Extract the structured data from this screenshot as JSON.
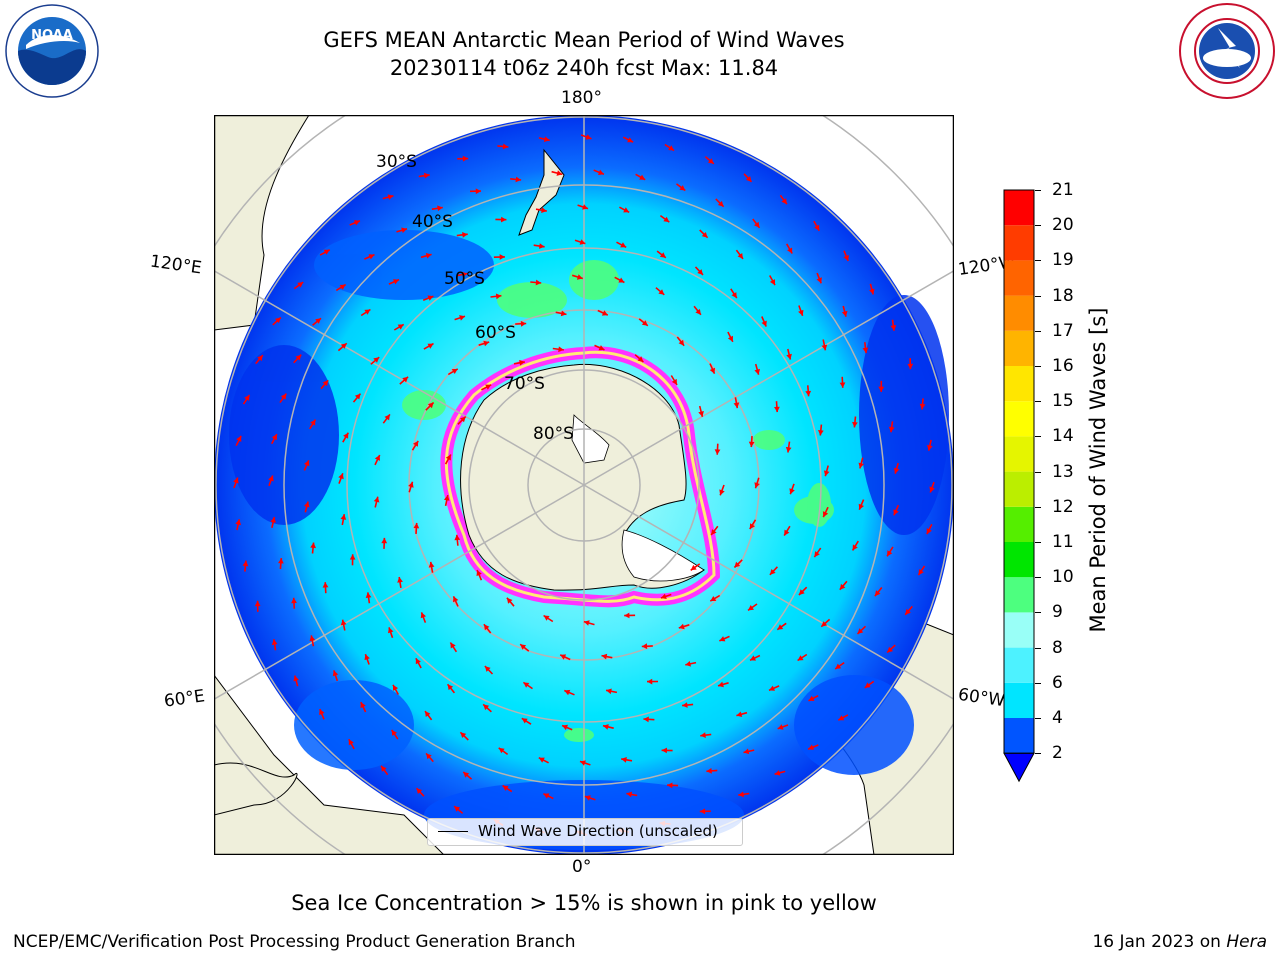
{
  "header": {
    "title_line1": "GEFS MEAN Antarctic Mean Period of Wind Waves",
    "title_line2": "20230114 t06z 240h fcst   Max: 11.84"
  },
  "map": {
    "projection": "south-polar-stereographic",
    "longitude_labels": {
      "top": "180°",
      "bottom": "0°",
      "upper_left": "120°E",
      "upper_right": "120°W",
      "lower_left": "60°E",
      "lower_right": "60°W"
    },
    "latitude_labels": [
      "30°S",
      "40°S",
      "50°S",
      "60°S",
      "70°S",
      "80°S"
    ],
    "legend_label": "Wind Wave Direction (unscaled)",
    "arrow_color": "#ff0000",
    "land_color": "#efefdb",
    "sea_ice_colors": [
      "#ff33ff",
      "#ffff66"
    ]
  },
  "colorbar": {
    "label": "Mean Period of Wind Waves [s]",
    "ticks": [
      "2",
      "4",
      "6",
      "8",
      "9",
      "10",
      "11",
      "12",
      "13",
      "14",
      "15",
      "16",
      "17",
      "18",
      "19",
      "20",
      "21"
    ],
    "colors": [
      "#0055ff",
      "#00e5ff",
      "#4df2ff",
      "#99fff7",
      "#4dff7f",
      "#00e600",
      "#55ee00",
      "#bbee00",
      "#e5f500",
      "#ffff00",
      "#ffe600",
      "#ffb400",
      "#ff8c00",
      "#ff6400",
      "#ff3c00",
      "#ff0000"
    ],
    "under_color": "#0000ff"
  },
  "caption": "Sea Ice Concentration > 15% is shown in pink to yellow",
  "footer": {
    "left": "NCEP/EMC/Verification Post Processing Product Generation Branch",
    "right_prefix": "16 Jan 2023 on ",
    "right_italic": "Hera"
  },
  "logos": {
    "left": "noaa-logo",
    "right": "national-weather-service-logo"
  }
}
